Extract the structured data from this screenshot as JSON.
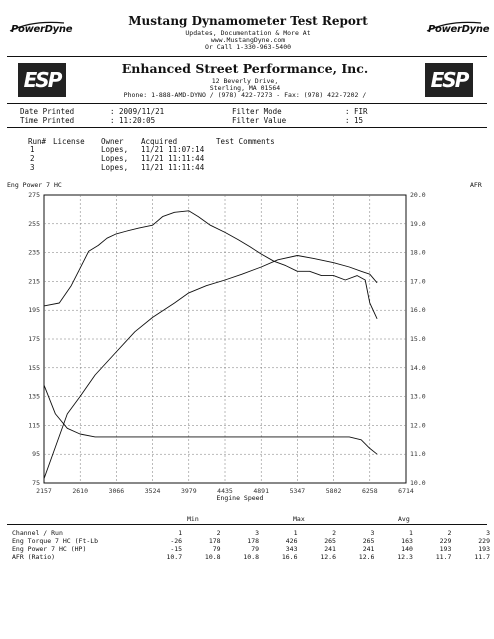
{
  "header": {
    "brand_left": "PowerDyne",
    "brand_right": "PowerDyne",
    "title": "Mustang Dynamometer Test Report",
    "line1": "Updates, Documentation & More At",
    "line2": "www.MustangDyne.com",
    "line3": "Or Call 1-330-963-5400"
  },
  "shop": {
    "logo_text": "ESP",
    "name": "Enhanced Street Performance, Inc.",
    "address1": "12 Beverly Drive,",
    "address2": "Sterling, MA  01564",
    "phone": "Phone: 1-888-AMD-DYNO / (978) 422-7273 - Fax: (978) 422-7202 /"
  },
  "meta": {
    "date_label": "Date Printed",
    "date_value": ": 2009/11/21",
    "time_label": "Time Printed",
    "time_value": ": 11:20:05",
    "filter_mode_label": "Filter Mode",
    "filter_mode_value": ": FIR",
    "filter_value_label": "Filter Value",
    "filter_value_value": ": 15"
  },
  "runs": {
    "headers": [
      "Run#",
      "License",
      "Owner",
      "Acquired",
      "Test Comments"
    ],
    "rows": [
      {
        "run": "1",
        "owner": "Lopes,",
        "acquired": "11/21 11:07:14"
      },
      {
        "run": "2",
        "owner": "Lopes,",
        "acquired": "11/21 11:11:44"
      },
      {
        "run": "3",
        "owner": "Lopes,",
        "acquired": "11/21 11:11:44"
      }
    ]
  },
  "chart_data": {
    "type": "line",
    "ylabel_left": "Eng Power 7 HC",
    "ylabel_right": "AFR",
    "xlabel": "Engine Speed",
    "x_ticks": [
      "2157",
      "2610",
      "3066",
      "3524",
      "3979",
      "4435",
      "4891",
      "5347",
      "5802",
      "6258",
      "6714"
    ],
    "y_ticks_left": [
      "275",
      "255",
      "235",
      "215",
      "195",
      "175",
      "155",
      "135",
      "115",
      "95",
      "75"
    ],
    "y_ticks_right": [
      "20.0",
      "19.0",
      "18.0",
      "17.0",
      "16.0",
      "15.0",
      "14.0",
      "13.0",
      "12.0",
      "11.0",
      "10.0"
    ],
    "xlim": [
      2157,
      6714
    ],
    "ylim_left": [
      75,
      275
    ],
    "ylim_right": [
      10.0,
      20.0
    ],
    "grid": true,
    "series": [
      {
        "axis": "left",
        "x": [
          2157,
          2350,
          2500,
          2610,
          2720,
          2840,
          2950,
          3066,
          3200,
          3350,
          3524,
          3650,
          3800,
          3979,
          4100,
          4250,
          4435,
          4600,
          4750,
          4891,
          5050,
          5200,
          5347,
          5500,
          5650,
          5802,
          5950,
          6100,
          6200,
          6258,
          6350
        ],
        "y": [
          198,
          200,
          212,
          224,
          236,
          240,
          245,
          248,
          250,
          252,
          254,
          260,
          263,
          264,
          260,
          254,
          249,
          244,
          239,
          234,
          229,
          226,
          222,
          222,
          219,
          219,
          216,
          219,
          216,
          200,
          189
        ]
      },
      {
        "axis": "left",
        "x": [
          2157,
          2300,
          2450,
          2610,
          2800,
          3066,
          3300,
          3524,
          3800,
          3979,
          4200,
          4435,
          4650,
          4891,
          5100,
          5347,
          5550,
          5802,
          6000,
          6150,
          6258,
          6350
        ],
        "y": [
          78,
          100,
          123,
          135,
          150,
          166,
          180,
          190,
          200,
          207,
          212,
          216,
          220,
          225,
          230,
          233,
          231,
          228,
          225,
          222,
          220,
          214
        ]
      },
      {
        "axis": "right",
        "x": [
          2157,
          2300,
          2450,
          2610,
          2800,
          3066,
          3524,
          3979,
          4435,
          4891,
          5347,
          5802,
          6000,
          6150,
          6258,
          6350
        ],
        "y": [
          13.4,
          12.4,
          11.9,
          11.7,
          11.6,
          11.6,
          11.6,
          11.6,
          11.6,
          11.6,
          11.6,
          11.6,
          11.6,
          11.5,
          11.2,
          11.0
        ]
      }
    ]
  },
  "stats": {
    "group_min": "Min",
    "group_max": "Max",
    "group_avg": "Avg",
    "header": [
      "Channel / Run",
      "1",
      "2",
      "3",
      "1",
      "2",
      "3",
      "1",
      "2",
      "3"
    ],
    "rows": [
      [
        "Eng Torque 7 HC (Ft-Lb",
        "-26",
        "178",
        "178",
        "426",
        "265",
        "265",
        "163",
        "229",
        "229"
      ],
      [
        "Eng Power 7 HC (HP)",
        "-15",
        "79",
        "79",
        "343",
        "241",
        "241",
        "140",
        "193",
        "193"
      ],
      [
        "AFR (Ratio)",
        "10.7",
        "10.8",
        "10.8",
        "16.6",
        "12.6",
        "12.6",
        "12.3",
        "11.7",
        "11.7"
      ]
    ]
  }
}
